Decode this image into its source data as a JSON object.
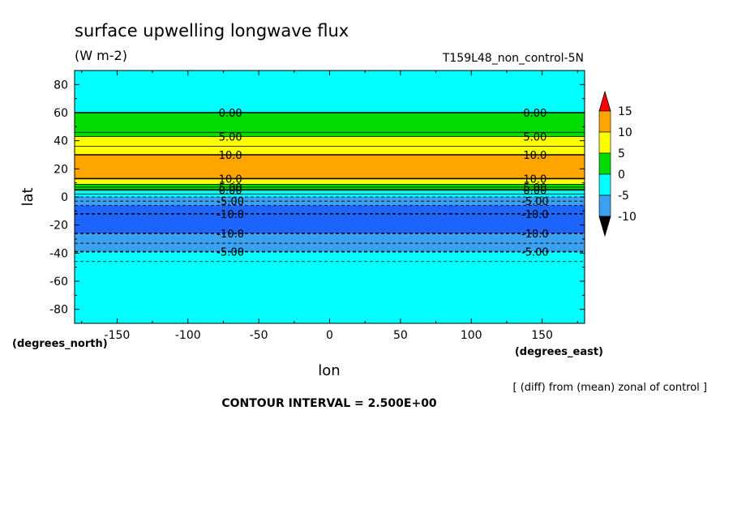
{
  "chart_data": {
    "type": "heatmap",
    "title": "surface upwelling longwave flux",
    "units": "(W m-2)",
    "experiment": "T159L48_non_control-5N",
    "xlabel": "lon",
    "ylabel": "lat",
    "x_units_label": "(degrees_east)",
    "y_units_label": "(degrees_north)",
    "xlim": [
      -180,
      180
    ],
    "ylim": [
      -90,
      90
    ],
    "xticks": [
      -150,
      -100,
      -50,
      0,
      50,
      100,
      150
    ],
    "yticks": [
      80,
      60,
      40,
      20,
      0,
      -20,
      -40,
      -60,
      -80
    ],
    "note": "[ (diff) from (mean) zonal of control ]",
    "contour_interval_text": "CONTOUR INTERVAL = 2.500E+00",
    "colorbar": {
      "levels": [
        -10,
        -5,
        0,
        5,
        10,
        15
      ],
      "labels": [
        "15",
        "10",
        "5",
        "0",
        "-5",
        "-10"
      ],
      "colors": {
        "below_-10": "#1e64ff",
        "-10_to_-5": "#1e64ff",
        "-5_to_0": "#3ca0f0",
        "0_to_5": "#00f0ff",
        "5_to_10": "#00dc00",
        "10_to_15": "#fff000",
        "above_15": "#ff0000"
      }
    },
    "latitude_bands": [
      {
        "lat_from": 90,
        "lat_to": 60,
        "value_range": "-5 to 0",
        "color": "#00ffff"
      },
      {
        "lat_from": 60,
        "lat_to": 46,
        "value_range": "0 to 5",
        "color": "#00dc00"
      },
      {
        "lat_from": 46,
        "lat_to": 43,
        "value_range": "0 to 5",
        "color": "#00dc00"
      },
      {
        "lat_from": 43,
        "lat_to": 36,
        "value_range": "5 to 10",
        "color": "#ffff00"
      },
      {
        "lat_from": 36,
        "lat_to": 30,
        "value_range": "5 to 10",
        "color": "#ffff00"
      },
      {
        "lat_from": 30,
        "lat_to": 13,
        "value_range": "10 to 15",
        "color": "#ffa500"
      },
      {
        "lat_from": 13,
        "lat_to": 9,
        "value_range": "5 to 10",
        "color": "#ffff00"
      },
      {
        "lat_from": 9,
        "lat_to": 5,
        "value_range": "0 to 5",
        "color": "#00dc00"
      },
      {
        "lat_from": 5,
        "lat_to": 0,
        "value_range": "-5 to 0",
        "color": "#00ffff"
      },
      {
        "lat_from": 0,
        "lat_to": -6,
        "value_range": "-5 to 0",
        "color": "#3ca0f0"
      },
      {
        "lat_from": -6,
        "lat_to": -26,
        "value_range": "-10 to -5",
        "color": "#1e64ff"
      },
      {
        "lat_from": -26,
        "lat_to": -39,
        "value_range": "-5 to 0",
        "color": "#3ca0f0"
      },
      {
        "lat_from": -39,
        "lat_to": -90,
        "value_range": "-5 to 0",
        "color": "#00ffff"
      }
    ],
    "contours": [
      {
        "lat": 60,
        "label": "0.00",
        "dashed": false,
        "thick": true
      },
      {
        "lat": 46,
        "label": "",
        "dashed": false,
        "thick": false
      },
      {
        "lat": 43,
        "label": "5.00",
        "dashed": false,
        "thick": false
      },
      {
        "lat": 36,
        "label": "",
        "dashed": false,
        "thick": false
      },
      {
        "lat": 30,
        "label": "10.0",
        "dashed": false,
        "thick": true
      },
      {
        "lat": 13,
        "label": "10.0",
        "dashed": false,
        "thick": true
      },
      {
        "lat": 9,
        "label": "",
        "dashed": false,
        "thick": false
      },
      {
        "lat": 7,
        "label": "5.00",
        "dashed": false,
        "thick": false
      },
      {
        "lat": 5,
        "label": "0.00",
        "dashed": false,
        "thick": true
      },
      {
        "lat": 2,
        "label": "",
        "dashed": false,
        "thick": false
      },
      {
        "lat": 0,
        "label": "",
        "dashed": true,
        "thick": false
      },
      {
        "lat": -3,
        "label": "-5.00",
        "dashed": true,
        "thick": false
      },
      {
        "lat": -6,
        "label": "",
        "dashed": true,
        "thick": false
      },
      {
        "lat": -12,
        "label": "-10.0",
        "dashed": true,
        "thick": true
      },
      {
        "lat": -26,
        "label": "-10.0",
        "dashed": true,
        "thick": true
      },
      {
        "lat": -33,
        "label": "",
        "dashed": true,
        "thick": false
      },
      {
        "lat": -39,
        "label": "-5.00",
        "dashed": true,
        "thick": true
      },
      {
        "lat": -46,
        "label": "",
        "dashed": true,
        "thick": false
      }
    ],
    "contour_label_lons": [
      -70,
      145
    ]
  }
}
